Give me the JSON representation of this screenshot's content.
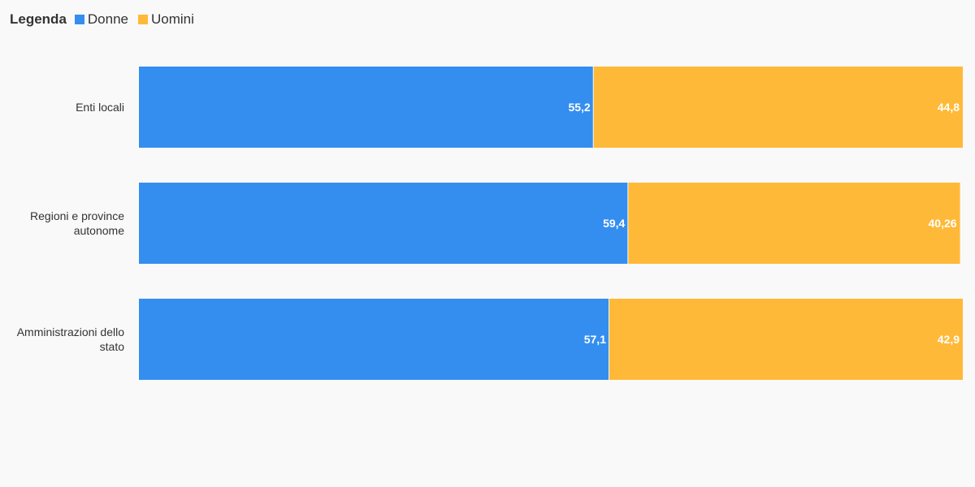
{
  "legend": {
    "title": "Legenda",
    "items": [
      {
        "label": "Donne",
        "color": "#348ef0"
      },
      {
        "label": "Uomini",
        "color": "#ffb938"
      }
    ]
  },
  "chart_data": {
    "type": "bar",
    "orientation": "horizontal",
    "stacked": true,
    "categories": [
      [
        "Enti locali"
      ],
      [
        "Regioni e province",
        "autonome"
      ],
      [
        "Amministrazioni dello",
        "stato"
      ]
    ],
    "series": [
      {
        "name": "Donne",
        "color": "#348ef0",
        "values": [
          55.2,
          59.4,
          57.1
        ],
        "labels": [
          "55,2",
          "59,4",
          "57,1"
        ]
      },
      {
        "name": "Uomini",
        "color": "#ffb938",
        "values": [
          44.8,
          40.26,
          42.9
        ],
        "labels": [
          "44,8",
          "40,26",
          "42,9"
        ]
      }
    ],
    "xlim": [
      0,
      100
    ],
    "grid": false,
    "legend_position": "top-left"
  }
}
